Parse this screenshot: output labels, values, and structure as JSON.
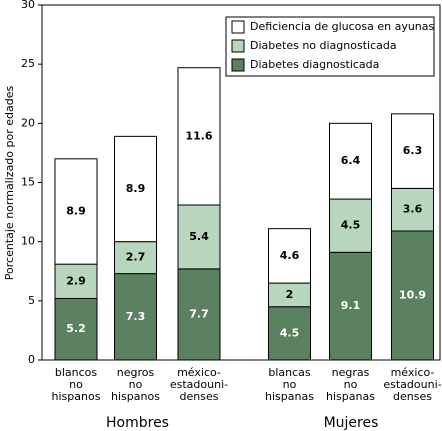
{
  "chart_data": {
    "type": "stacked-bar",
    "y_label": "Porcentaje normalizado por edades",
    "groups": [
      {
        "name": "Hombres",
        "categories": [
          [
            "blancos",
            "no",
            "hispanos"
          ],
          [
            "negros",
            "no",
            "hispanos"
          ],
          [
            "méxico-",
            "estadouni-",
            "denses"
          ]
        ]
      },
      {
        "name": "Mujeres",
        "categories": [
          [
            "blancas",
            "no",
            "hispanas"
          ],
          [
            "negras",
            "no",
            "hispanas"
          ],
          [
            "méxico-",
            "estadouni-",
            "denses"
          ]
        ]
      }
    ],
    "series": [
      {
        "name": "Diabetes diagnosticada",
        "color": "#5b8161",
        "label_color": "#ffffff",
        "values": [
          5.2,
          7.3,
          7.7,
          4.5,
          9.1,
          10.9
        ]
      },
      {
        "name": "Diabetes no diagnosticada",
        "color": "#b8d5bd",
        "label_color": "#000000",
        "values": [
          2.9,
          2.7,
          5.4,
          2.0,
          4.5,
          3.6
        ]
      },
      {
        "name": "Deficiencia de glucosa en ayunas",
        "color": "#ffffff",
        "label_color": "#000000",
        "values": [
          8.9,
          8.9,
          11.6,
          4.6,
          6.4,
          6.3
        ]
      }
    ],
    "ylim": [
      0,
      30
    ],
    "yticks": [
      0,
      5,
      10,
      15,
      20,
      25,
      30
    ],
    "legend": "top-right"
  }
}
